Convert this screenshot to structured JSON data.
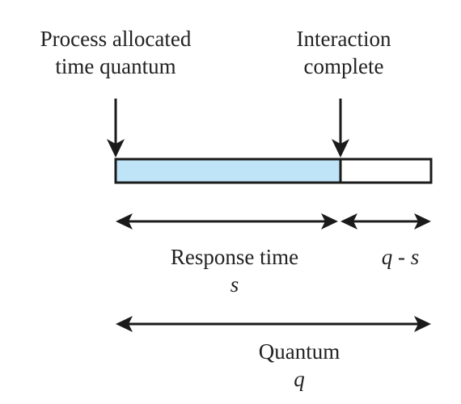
{
  "labels": {
    "process_line1": "Process allocated",
    "process_line2": "time quantum",
    "interaction_line1": "Interaction",
    "interaction_line2": "complete",
    "response_time": "Response time",
    "response_symbol": "s",
    "remainder": "q - s",
    "quantum": "Quantum",
    "quantum_symbol": "q"
  },
  "colors": {
    "used_segment_fill": "#bfe4f7",
    "unused_segment_fill": "#ffffff",
    "stroke": "#1a1a1a",
    "text": "#222222"
  },
  "icons": {
    "allocation_arrow": "down-arrow-icon",
    "interaction_arrow": "down-arrow-icon"
  }
}
